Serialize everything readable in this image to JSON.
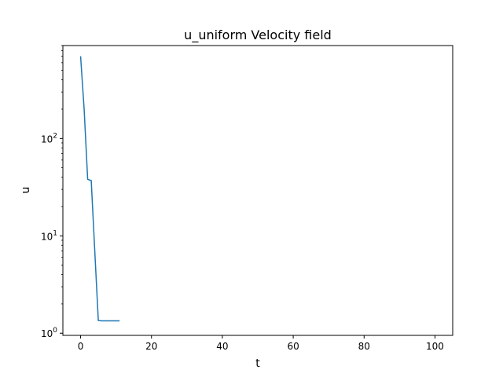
{
  "chart_data": {
    "type": "line",
    "title": "u_uniform Velocity field",
    "xlabel": "t",
    "ylabel": "u",
    "x_scale": "linear",
    "y_scale": "log",
    "xlim": [
      -5,
      105
    ],
    "ylim": [
      0.95,
      900
    ],
    "x_ticks": [
      0,
      20,
      40,
      60,
      80,
      100
    ],
    "y_ticks": [
      {
        "value": 1,
        "base": "10",
        "exp": "0"
      },
      {
        "value": 10,
        "base": "10",
        "exp": "1"
      },
      {
        "value": 100,
        "base": "10",
        "exp": "2"
      }
    ],
    "y_minor_ticks": [
      2,
      3,
      4,
      5,
      6,
      7,
      8,
      9,
      20,
      30,
      40,
      50,
      60,
      70,
      80,
      90,
      200,
      300,
      400,
      500,
      600,
      700,
      800,
      900
    ],
    "grid": false,
    "series": [
      {
        "color": "#1f77b4",
        "x": [
          0,
          1,
          2,
          3,
          4,
          5,
          6,
          7,
          8,
          9,
          10,
          11
        ],
        "y": [
          700,
          200,
          38,
          37,
          7,
          1.35,
          1.34,
          1.34,
          1.34,
          1.34,
          1.34,
          1.34
        ]
      }
    ]
  }
}
